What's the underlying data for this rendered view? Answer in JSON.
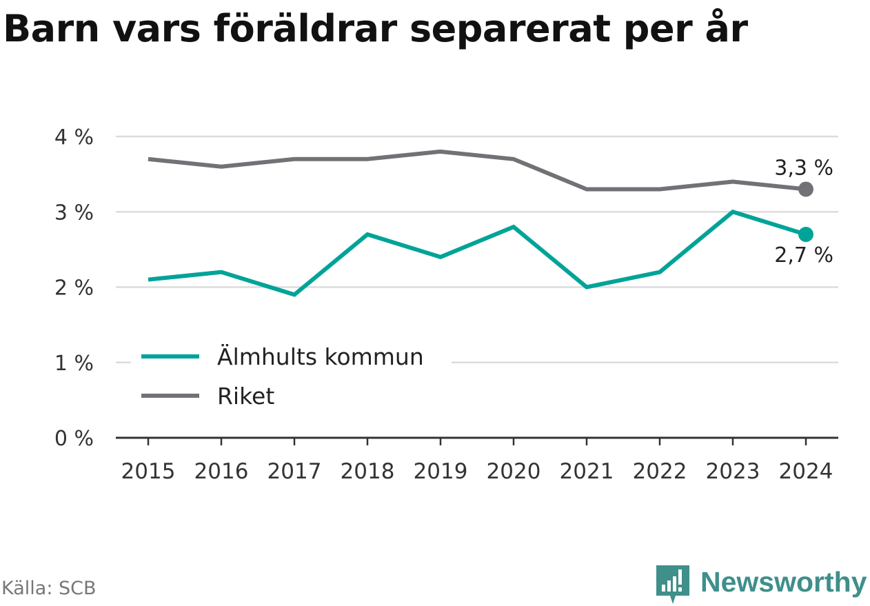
{
  "title": "Barn vars föräldrar separerat per år",
  "source": "Källa: SCB",
  "brand": {
    "name": "Newsworthy",
    "icon": "bar-chart-speech-bubble-icon",
    "color": "#3f8f8b"
  },
  "chart_data": {
    "type": "line",
    "title": "Barn vars föräldrar separerat per år",
    "x": [
      "2015",
      "2016",
      "2017",
      "2018",
      "2019",
      "2020",
      "2021",
      "2022",
      "2023",
      "2024"
    ],
    "series": [
      {
        "name": "Älmhults kommun",
        "color": "#00a398",
        "values": [
          2.1,
          2.2,
          1.9,
          2.7,
          2.4,
          2.8,
          2.0,
          2.2,
          3.0,
          2.7
        ],
        "end_label": "2,7 %"
      },
      {
        "name": "Riket",
        "color": "#727176",
        "values": [
          3.7,
          3.6,
          3.7,
          3.7,
          3.8,
          3.7,
          3.3,
          3.3,
          3.4,
          3.3
        ],
        "end_label": "3,3 %"
      }
    ],
    "y_ticks": [
      {
        "value": 0,
        "label": "0 %"
      },
      {
        "value": 1,
        "label": "1 %"
      },
      {
        "value": 2,
        "label": "2 %"
      },
      {
        "value": 3,
        "label": "3 %"
      },
      {
        "value": 4,
        "label": "4 %"
      }
    ],
    "ylim": [
      0,
      4
    ],
    "grid": true,
    "legend_position": "bottom-left"
  }
}
